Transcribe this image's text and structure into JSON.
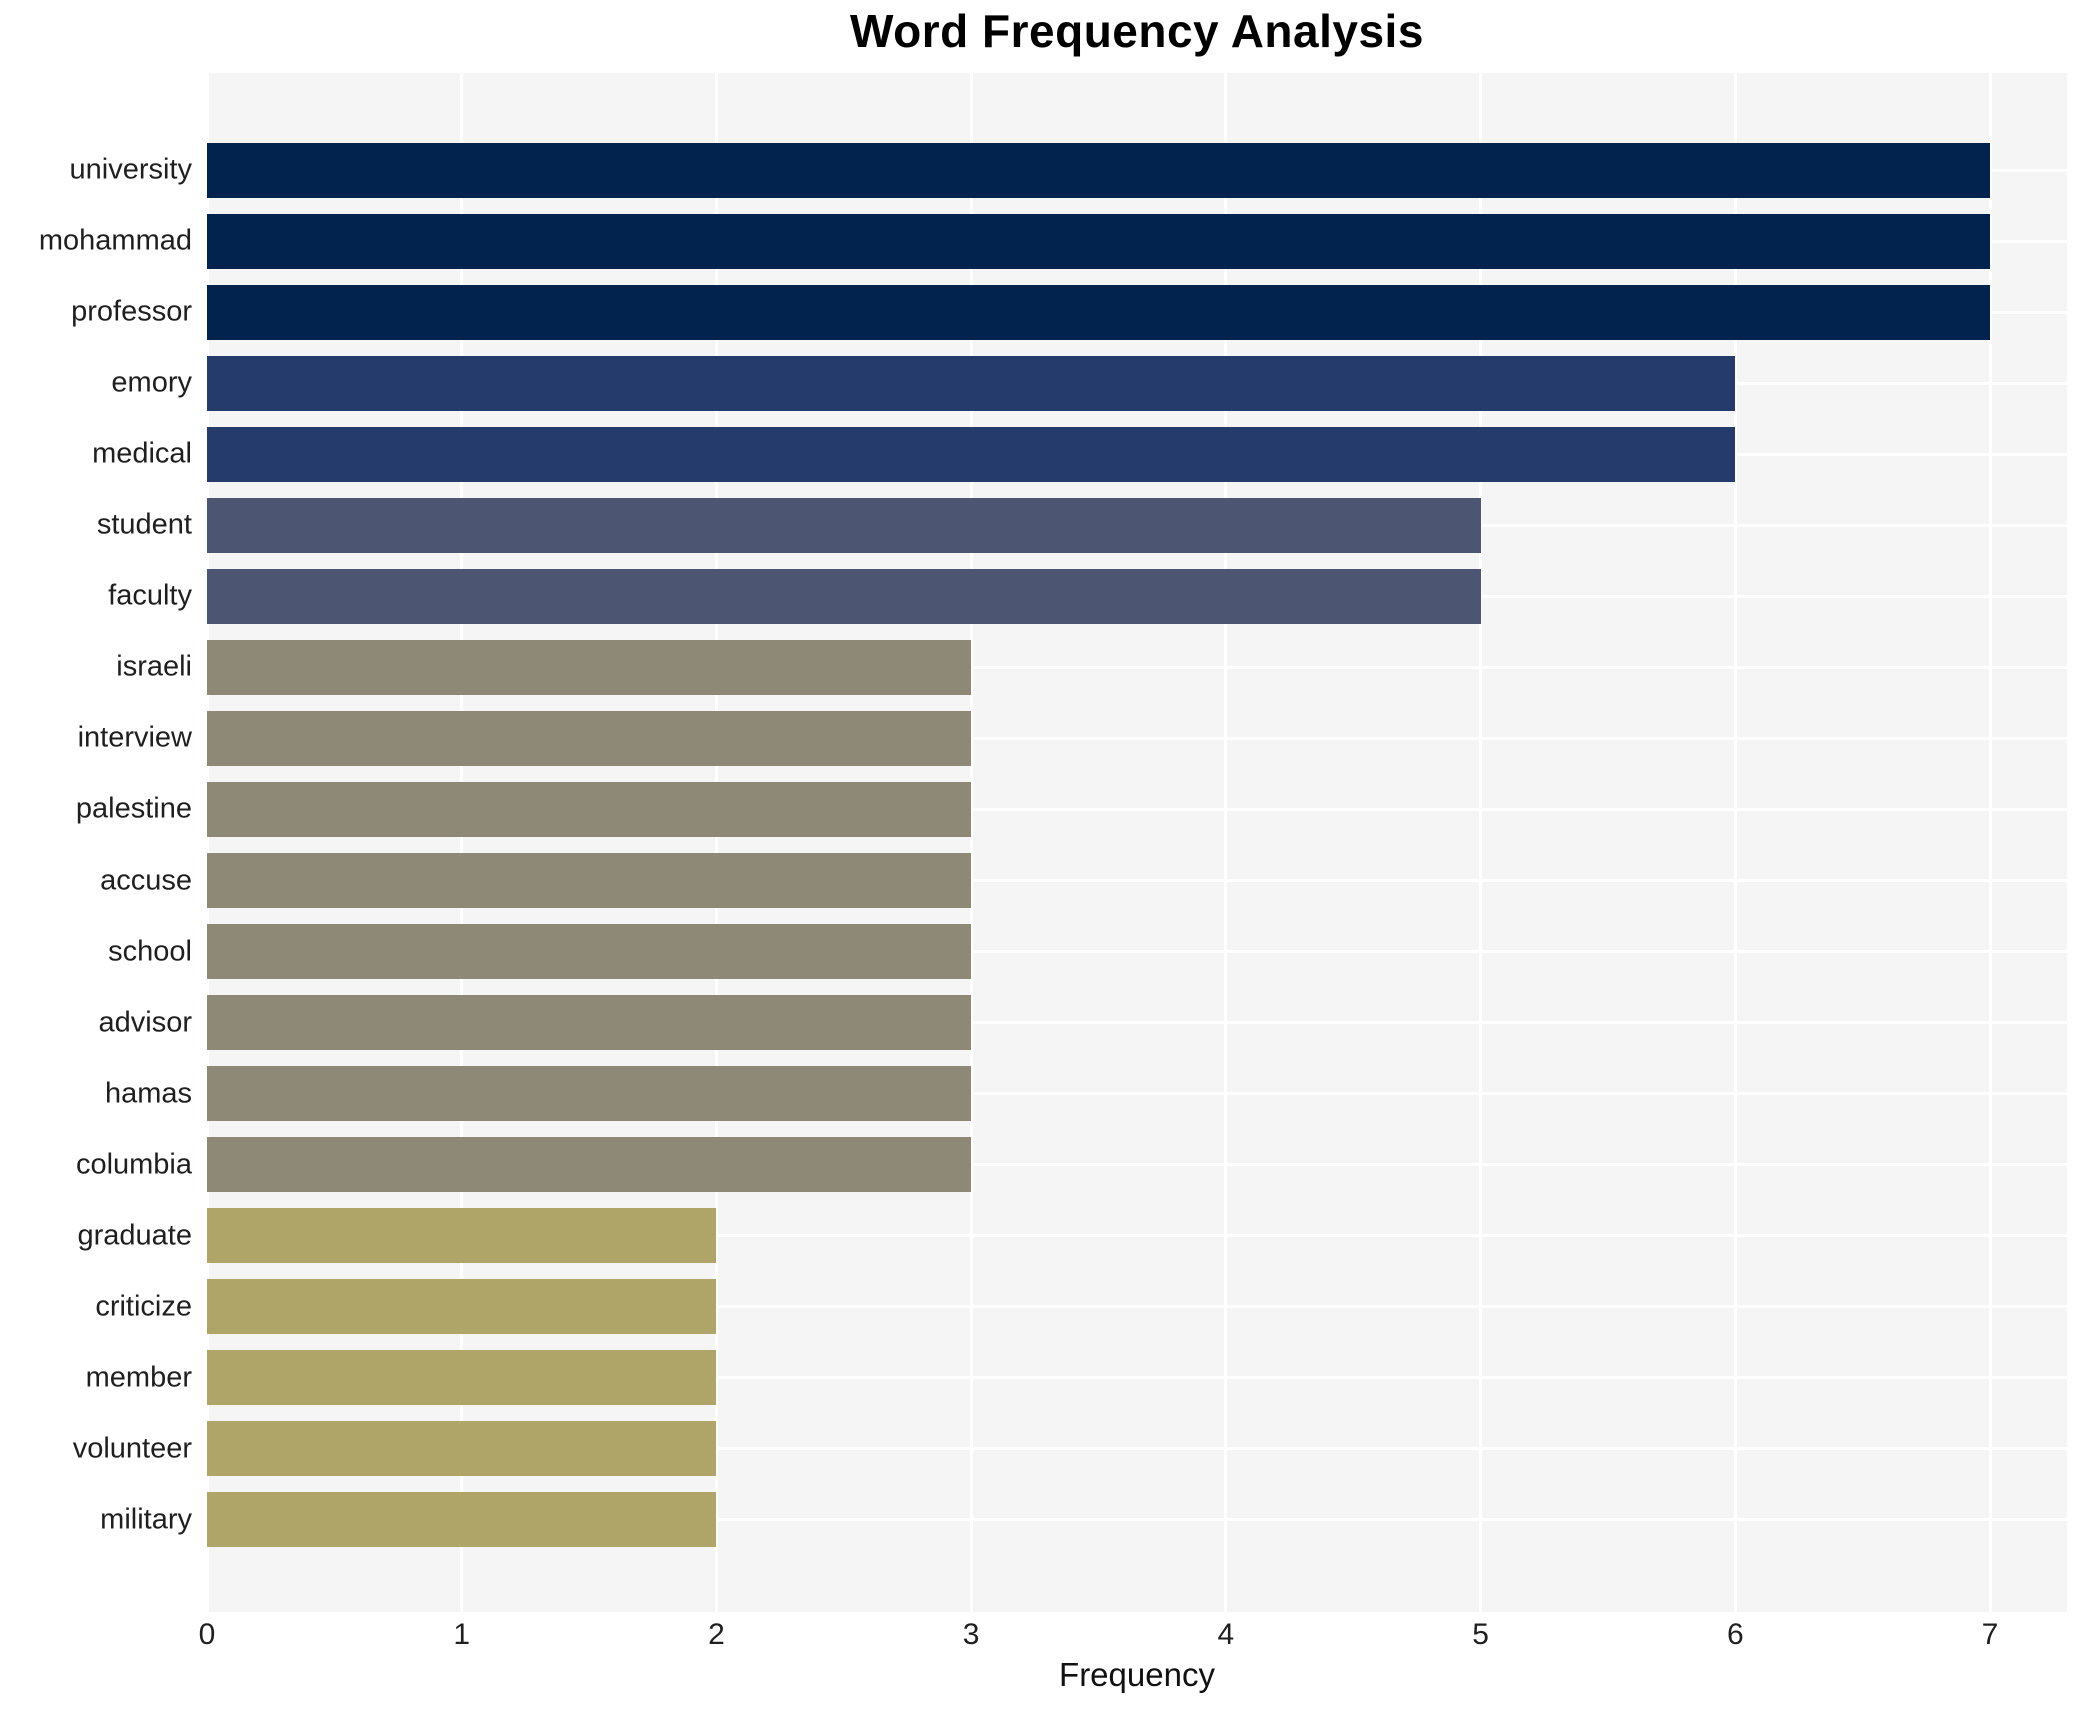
{
  "title": "Word Frequency Analysis",
  "chart_data": {
    "type": "bar",
    "orientation": "horizontal",
    "title": "Word Frequency Analysis",
    "xlabel": "Frequency",
    "ylabel": "",
    "categories": [
      "university",
      "mohammad",
      "professor",
      "emory",
      "medical",
      "student",
      "faculty",
      "israeli",
      "interview",
      "palestine",
      "accuse",
      "school",
      "advisor",
      "hamas",
      "columbia",
      "graduate",
      "criticize",
      "member",
      "volunteer",
      "military"
    ],
    "values": [
      7,
      7,
      7,
      6,
      6,
      5,
      5,
      3,
      3,
      3,
      3,
      3,
      3,
      3,
      3,
      2,
      2,
      2,
      2,
      2
    ],
    "bar_colors": [
      "#02234e",
      "#02234e",
      "#02234e",
      "#243b6b",
      "#243b6b",
      "#4c5571",
      "#4c5571",
      "#8e8977",
      "#8e8977",
      "#8e8977",
      "#8e8977",
      "#8e8977",
      "#8e8977",
      "#8e8977",
      "#8e8977",
      "#b0a569",
      "#b0a569",
      "#b0a569",
      "#b0a569",
      "#b0a569"
    ],
    "xticks": [
      0,
      1,
      2,
      3,
      4,
      5,
      6,
      7
    ],
    "xlim": [
      0,
      7.3
    ],
    "grid": "white major gridlines on light gray panel",
    "panel_bg": "#f5f5f6",
    "legend": "none"
  }
}
